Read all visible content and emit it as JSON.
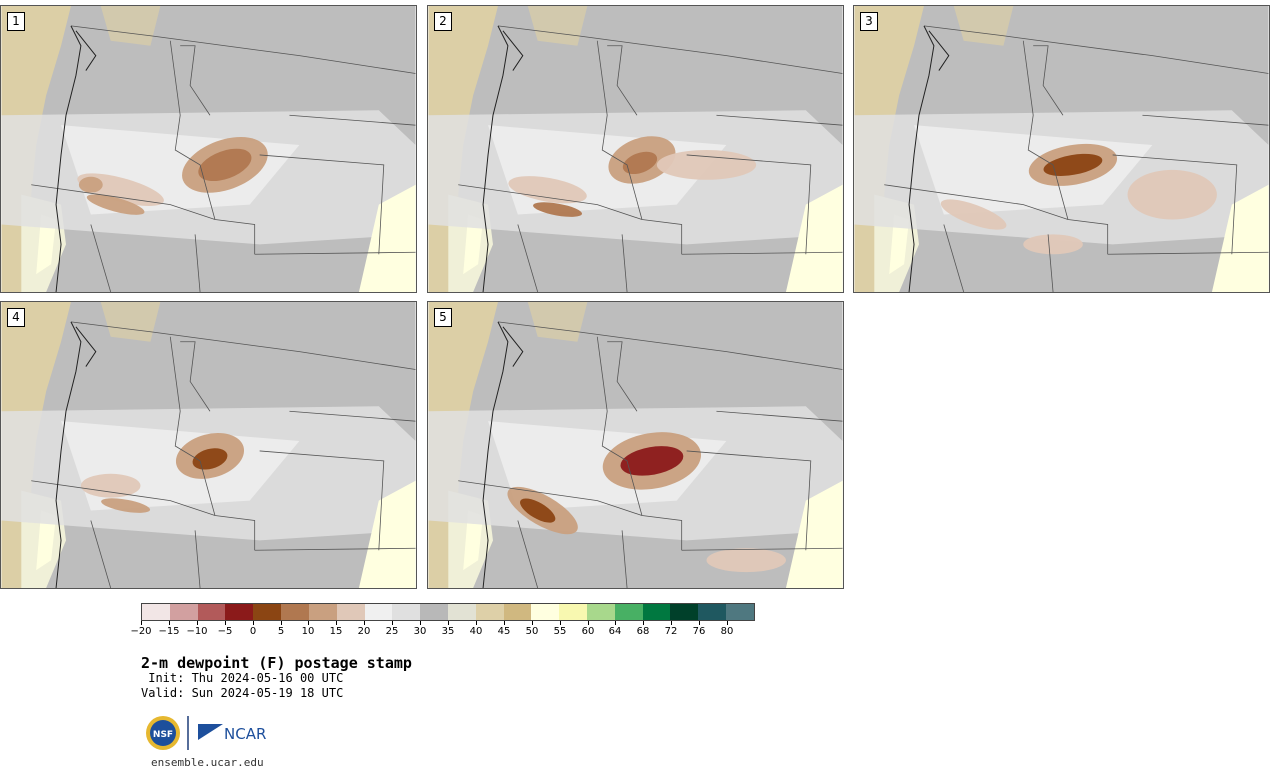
{
  "panels": [
    {
      "label": "1"
    },
    {
      "label": "2"
    },
    {
      "label": "3"
    },
    {
      "label": "4"
    },
    {
      "label": "5"
    }
  ],
  "colorbar": {
    "colors": [
      "#f2e6e6",
      "#d2a0a0",
      "#b25a5a",
      "#8b1a1a",
      "#8b4513",
      "#b07850",
      "#c9a080",
      "#e0c8b8",
      "#f0f0f0",
      "#e0e0e0",
      "#b8b8b8",
      "#e2e2d4",
      "#ded0a8",
      "#d0b880",
      "#ffffe0",
      "#f8f8b0",
      "#a8d88c",
      "#48b064",
      "#007840",
      "#00402a",
      "#1f5860",
      "#4f7880"
    ],
    "tick_labels": [
      "−20",
      "−15",
      "−10",
      "−5",
      "0",
      "5",
      "10",
      "15",
      "20",
      "25",
      "30",
      "35",
      "40",
      "45",
      "50",
      "55",
      "60",
      "64",
      "68",
      "72",
      "76",
      "80"
    ]
  },
  "text": {
    "title": "2-m dewpoint (F) postage stamp",
    "init": " Init: Thu 2024-05-16 00 UTC",
    "valid": "Valid: Sun 2024-05-19 18 UTC",
    "url": "ensemble.ucar.edu"
  },
  "logos": {
    "nsf": "NSF",
    "ncar": "NCAR"
  },
  "colors": {
    "land_gray": "#bdbdbd",
    "ocean_tan": "#dccfa6"
  }
}
